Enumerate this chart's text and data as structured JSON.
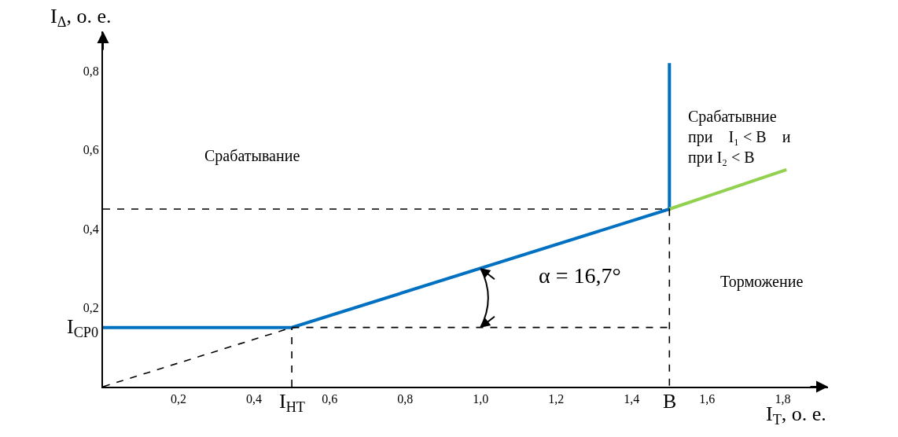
{
  "chart_data": {
    "type": "line",
    "xlabel": "I$_{Т}$, о. е.",
    "ylabel": "I$_{Δ}$, о. е.",
    "x": [
      0,
      0.5,
      1.5,
      1.5
    ],
    "series": [
      {
        "color": "#0070c0",
        "values": [
          0.15,
          0.15,
          0.45,
          0.82
        ]
      },
      {
        "color": "#92d050",
        "x": [
          1.5,
          1.81
        ],
        "values": [
          0.45,
          0.55
        ]
      },
      {
        "color": "#000000",
        "x": [
          0,
          0.5,
          1.5,
          null,
          0.5,
          0.5,
          null,
          0,
          1.5,
          1.5
        ],
        "values": [
          0,
          0.15,
          0.15,
          null,
          0,
          0.15,
          null,
          0.45,
          0.45,
          0
        ],
        "line_style": "dashed"
      }
    ],
    "xlim": [
      0,
      1.92
    ],
    "ylim": [
      0,
      0.9
    ],
    "xticks": [
      {
        "value": 0.2,
        "label": "0,2"
      },
      {
        "value": 0.4,
        "label": "0,4"
      },
      {
        "value": 0.6,
        "label": "0,6"
      },
      {
        "value": 0.8,
        "label": "0,8"
      },
      {
        "value": 1.0,
        "label": "1,0"
      },
      {
        "value": 1.2,
        "label": "1,2"
      },
      {
        "value": 1.4,
        "label": "1,4"
      },
      {
        "value": 1.6,
        "label": "1,6"
      },
      {
        "value": 1.8,
        "label": "1,8"
      }
    ],
    "yticks": [
      {
        "value": 0.2,
        "label": "0,2"
      },
      {
        "value": 0.4,
        "label": "0,4"
      },
      {
        "value": 0.6,
        "label": "0,6"
      },
      {
        "value": 0.8,
        "label": "0,8"
      }
    ],
    "line_style": "solid",
    "marker": "none",
    "annotations": [
      "Срабатывание",
      "Срабатывние\nпри    I₁ < B    и\nпри I₂ < B",
      "Торможение",
      "α = 16,7°",
      {
        "text": "I$_{НТ}$",
        "x": 0.5,
        "y": 0
      },
      {
        "text": "B",
        "x": 1.5,
        "y": 0
      },
      {
        "text": "I$_{СР0}$",
        "x": 0,
        "y": 0.15
      }
    ]
  }
}
